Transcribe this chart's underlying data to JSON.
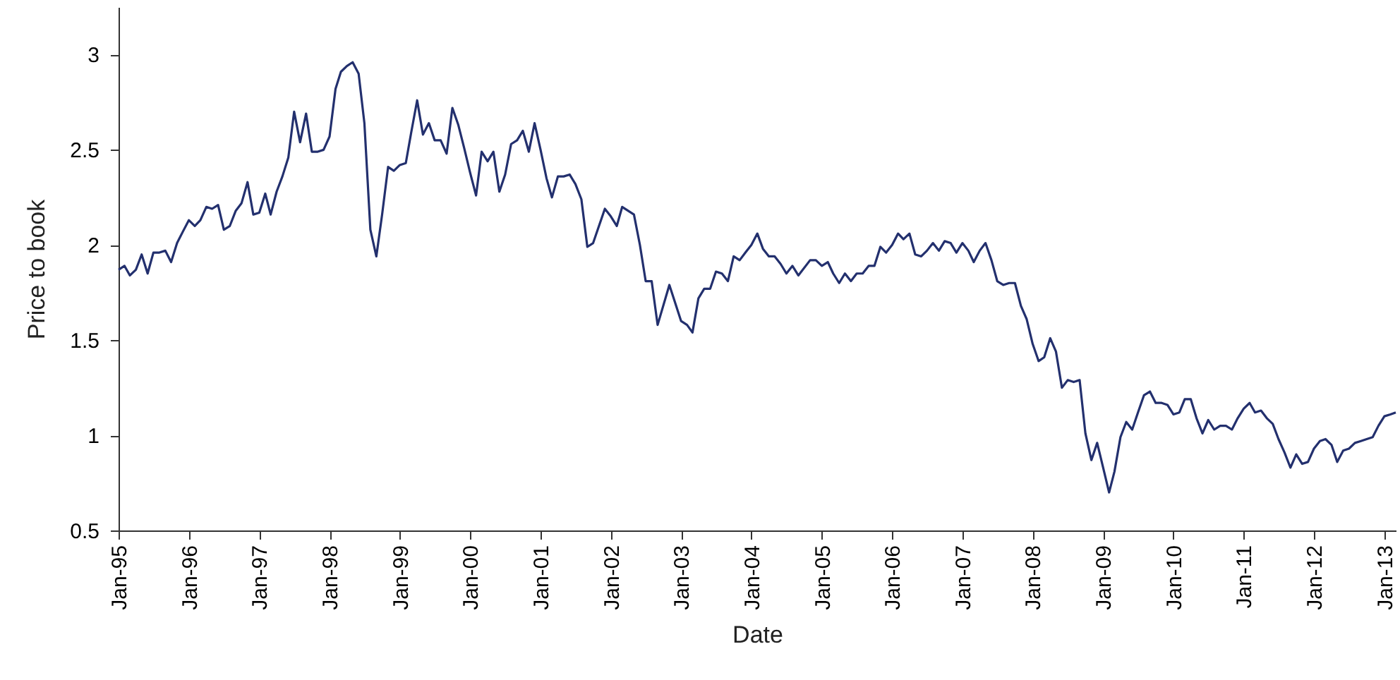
{
  "chart_data": {
    "type": "line",
    "xlabel": "Date",
    "ylabel": "Price to book",
    "xlim": [
      "1995-01",
      "2013-03"
    ],
    "ylim": [
      0.5,
      3.25
    ],
    "yticks": [
      0.5,
      1,
      1.5,
      2,
      2.5,
      3
    ],
    "xticks": [
      {
        "value": "1995-01",
        "label": "Jan-95"
      },
      {
        "value": "1996-01",
        "label": "Jan-96"
      },
      {
        "value": "1997-01",
        "label": "Jan-97"
      },
      {
        "value": "1998-01",
        "label": "Jan-98"
      },
      {
        "value": "1999-01",
        "label": "Jan-99"
      },
      {
        "value": "2000-01",
        "label": "Jan-00"
      },
      {
        "value": "2001-01",
        "label": "Jan-01"
      },
      {
        "value": "2002-01",
        "label": "Jan-02"
      },
      {
        "value": "2003-01",
        "label": "Jan-03"
      },
      {
        "value": "2004-01",
        "label": "Jan-04"
      },
      {
        "value": "2005-01",
        "label": "Jan-05"
      },
      {
        "value": "2006-01",
        "label": "Jan-06"
      },
      {
        "value": "2007-01",
        "label": "Jan-07"
      },
      {
        "value": "2008-01",
        "label": "Jan-08"
      },
      {
        "value": "2009-01",
        "label": "Jan-09"
      },
      {
        "value": "2010-01",
        "label": "Jan-10"
      },
      {
        "value": "2011-01",
        "label": "Jan-11"
      },
      {
        "value": "2012-01",
        "label": "Jan-12"
      },
      {
        "value": "2013-01",
        "label": "Jan-13"
      }
    ],
    "grid": false,
    "marker": "none",
    "line_style": "solid",
    "x": [
      "1995-01",
      "1995-02",
      "1995-03",
      "1995-04",
      "1995-05",
      "1995-06",
      "1995-07",
      "1995-08",
      "1995-09",
      "1995-10",
      "1995-11",
      "1995-12",
      "1996-01",
      "1996-02",
      "1996-03",
      "1996-04",
      "1996-05",
      "1996-06",
      "1996-07",
      "1996-08",
      "1996-09",
      "1996-10",
      "1996-11",
      "1996-12",
      "1997-01",
      "1997-02",
      "1997-03",
      "1997-04",
      "1997-05",
      "1997-06",
      "1997-07",
      "1997-08",
      "1997-09",
      "1997-10",
      "1997-11",
      "1997-12",
      "1998-01",
      "1998-02",
      "1998-03",
      "1998-04",
      "1998-05",
      "1998-06",
      "1998-07",
      "1998-08",
      "1998-09",
      "1998-10",
      "1998-11",
      "1998-12",
      "1999-01",
      "1999-02",
      "1999-03",
      "1999-04",
      "1999-05",
      "1999-06",
      "1999-07",
      "1999-08",
      "1999-09",
      "1999-10",
      "1999-11",
      "1999-12",
      "2000-01",
      "2000-02",
      "2000-03",
      "2000-04",
      "2000-05",
      "2000-06",
      "2000-07",
      "2000-08",
      "2000-09",
      "2000-10",
      "2000-11",
      "2000-12",
      "2001-01",
      "2001-02",
      "2001-03",
      "2001-04",
      "2001-05",
      "2001-06",
      "2001-07",
      "2001-08",
      "2001-09",
      "2001-10",
      "2001-12",
      "2002-01",
      "2002-02",
      "2002-03",
      "2002-05",
      "2002-06",
      "2002-07",
      "2002-08",
      "2002-09",
      "2002-11",
      "2003-01",
      "2003-02",
      "2003-03",
      "2003-04",
      "2003-05",
      "2003-06",
      "2003-07",
      "2003-08",
      "2003-09",
      "2003-10",
      "2003-11",
      "2003-12",
      "2004-01",
      "2004-02",
      "2004-03",
      "2004-04",
      "2004-05",
      "2004-06",
      "2004-07",
      "2004-08",
      "2004-09",
      "2004-11",
      "2004-12",
      "2005-01",
      "2005-02",
      "2005-03",
      "2005-04",
      "2005-05",
      "2005-06",
      "2005-07",
      "2005-08",
      "2005-09",
      "2005-10",
      "2005-11",
      "2005-12",
      "2006-01",
      "2006-02",
      "2006-03",
      "2006-04",
      "2006-05",
      "2006-06",
      "2006-07",
      "2006-08",
      "2006-09",
      "2006-10",
      "2006-11",
      "2006-12",
      "2007-01",
      "2007-02",
      "2007-03",
      "2007-04",
      "2007-05",
      "2007-06",
      "2007-07",
      "2007-08",
      "2007-09",
      "2007-10",
      "2007-11",
      "2007-12",
      "2008-01",
      "2008-02",
      "2008-03",
      "2008-04",
      "2008-05",
      "2008-06",
      "2008-07",
      "2008-08",
      "2008-09",
      "2008-10",
      "2008-11",
      "2008-12",
      "2009-01",
      "2009-02",
      "2009-03",
      "2009-04",
      "2009-05",
      "2009-06",
      "2009-07",
      "2009-08",
      "2009-09",
      "2009-10",
      "2009-11",
      "2009-12",
      "2010-01",
      "2010-02",
      "2010-03",
      "2010-04",
      "2010-05",
      "2010-06",
      "2010-07",
      "2010-08",
      "2010-09",
      "2010-10",
      "2010-11",
      "2010-12",
      "2011-01",
      "2011-02",
      "2011-03",
      "2011-04",
      "2011-05",
      "2011-06",
      "2011-07",
      "2011-08",
      "2011-09",
      "2011-10",
      "2011-11",
      "2011-12",
      "2012-01",
      "2012-02",
      "2012-03",
      "2012-04",
      "2012-05",
      "2012-06",
      "2012-07",
      "2012-08",
      "2012-09",
      "2012-10",
      "2012-11",
      "2012-12",
      "2013-01",
      "2013-02",
      "2013-03"
    ],
    "series": [
      {
        "color": "#23306e",
        "values": [
          1.87,
          1.89,
          1.84,
          1.87,
          1.95,
          1.85,
          1.96,
          1.96,
          1.97,
          1.91,
          2.01,
          2.07,
          2.13,
          2.1,
          2.13,
          2.2,
          2.19,
          2.21,
          2.08,
          2.1,
          2.18,
          2.22,
          2.33,
          2.16,
          2.17,
          2.27,
          2.16,
          2.28,
          2.36,
          2.46,
          2.7,
          2.54,
          2.69,
          2.49,
          2.49,
          2.5,
          2.57,
          2.82,
          2.91,
          2.94,
          2.96,
          2.9,
          2.64,
          2.08,
          1.94,
          2.16,
          2.41,
          2.39,
          2.42,
          2.43,
          2.59,
          2.76,
          2.58,
          2.64,
          2.55,
          2.55,
          2.48,
          2.72,
          2.63,
          2.51,
          2.38,
          2.26,
          2.49,
          2.44,
          2.49,
          2.28,
          2.37,
          2.53,
          2.55,
          2.6,
          2.49,
          2.64,
          2.5,
          2.35,
          2.25,
          2.36,
          2.36,
          2.37,
          2.32,
          2.24,
          1.99,
          2.01,
          2.19,
          2.15,
          2.1,
          2.2,
          2.16,
          2.0,
          1.81,
          1.81,
          1.58,
          1.79,
          1.6,
          1.58,
          1.54,
          1.72,
          1.77,
          1.77,
          1.86,
          1.85,
          1.81,
          1.94,
          1.92,
          1.96,
          2.0,
          2.06,
          1.98,
          1.94,
          1.94,
          1.9,
          1.85,
          1.89,
          1.84,
          1.92,
          1.92,
          1.89,
          1.91,
          1.85,
          1.8,
          1.85,
          1.81,
          1.85,
          1.85,
          1.89,
          1.89,
          1.99,
          1.96,
          2.0,
          2.06,
          2.03,
          2.06,
          1.95,
          1.94,
          1.97,
          2.01,
          1.97,
          2.02,
          2.01,
          1.96,
          2.01,
          1.97,
          1.91,
          1.97,
          2.01,
          1.92,
          1.81,
          1.79,
          1.8,
          1.8,
          1.68,
          1.61,
          1.48,
          1.39,
          1.41,
          1.51,
          1.44,
          1.25,
          1.29,
          1.28,
          1.29,
          1.01,
          0.87,
          0.96,
          0.83,
          0.7,
          0.81,
          0.99,
          1.07,
          1.03,
          1.12,
          1.21,
          1.23,
          1.17,
          1.17,
          1.16,
          1.11,
          1.12,
          1.19,
          1.19,
          1.09,
          1.01,
          1.08,
          1.03,
          1.05,
          1.05,
          1.03,
          1.09,
          1.14,
          1.17,
          1.12,
          1.13,
          1.09,
          1.06,
          0.98,
          0.91,
          0.83,
          0.9,
          0.85,
          0.86,
          0.93,
          0.97,
          0.98,
          0.95,
          0.86,
          0.92,
          0.93,
          0.96,
          0.97,
          0.98,
          0.99,
          1.05,
          1.1,
          1.11,
          1.12
        ]
      }
    ]
  }
}
